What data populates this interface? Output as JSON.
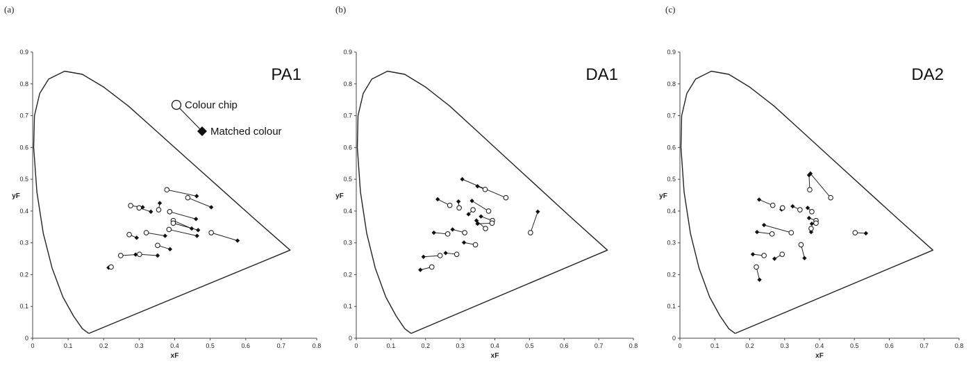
{
  "chart_data": [
    {
      "type": "scatter",
      "panel_label": "(a)",
      "title": "PA1",
      "xlabel": "xF",
      "ylabel": "yF",
      "xlim": [
        0,
        0.8
      ],
      "ylim": [
        0,
        0.9
      ],
      "xticks": [
        "0",
        "0.1",
        "0.2",
        "0.3",
        "0.4",
        "0.5",
        "0.6",
        "0.7",
        "0.8"
      ],
      "yticks": [
        "0",
        "0.1",
        "0.2",
        "0.3",
        "0.4",
        "0.5",
        "0.6",
        "0.7",
        "0.8",
        "0.9"
      ],
      "legend": {
        "chip_label": "Colour chip",
        "matched_label": "Matched colour",
        "placement": "top-right"
      },
      "gamut_boundary": [
        [
          0.158,
          0.015
        ],
        [
          0.14,
          0.03
        ],
        [
          0.115,
          0.07
        ],
        [
          0.085,
          0.13
        ],
        [
          0.055,
          0.22
        ],
        [
          0.03,
          0.33
        ],
        [
          0.012,
          0.46
        ],
        [
          0.003,
          0.6
        ],
        [
          0.005,
          0.7
        ],
        [
          0.02,
          0.77
        ],
        [
          0.045,
          0.815
        ],
        [
          0.09,
          0.84
        ],
        [
          0.14,
          0.83
        ],
        [
          0.2,
          0.79
        ],
        [
          0.27,
          0.73
        ],
        [
          0.35,
          0.65
        ],
        [
          0.43,
          0.57
        ],
        [
          0.52,
          0.48
        ],
        [
          0.62,
          0.38
        ],
        [
          0.725,
          0.277
        ],
        [
          0.158,
          0.015
        ]
      ],
      "pairs": [
        {
          "chip": [
            0.378,
            0.467
          ],
          "matched": [
            0.462,
            0.447
          ]
        },
        {
          "chip": [
            0.437,
            0.442
          ],
          "matched": [
            0.503,
            0.412
          ]
        },
        {
          "chip": [
            0.276,
            0.417
          ],
          "matched": [
            0.31,
            0.412
          ]
        },
        {
          "chip": [
            0.3,
            0.41
          ],
          "matched": [
            0.333,
            0.398
          ]
        },
        {
          "chip": [
            0.355,
            0.404
          ],
          "matched": [
            0.358,
            0.425
          ]
        },
        {
          "chip": [
            0.386,
            0.398
          ],
          "matched": [
            0.46,
            0.375
          ]
        },
        {
          "chip": [
            0.396,
            0.37
          ],
          "matched": [
            0.448,
            0.345
          ]
        },
        {
          "chip": [
            0.396,
            0.362
          ],
          "matched": [
            0.466,
            0.34
          ]
        },
        {
          "chip": [
            0.503,
            0.332
          ],
          "matched": [
            0.577,
            0.307
          ]
        },
        {
          "chip": [
            0.384,
            0.342
          ],
          "matched": [
            0.463,
            0.322
          ]
        },
        {
          "chip": [
            0.32,
            0.332
          ],
          "matched": [
            0.373,
            0.322
          ]
        },
        {
          "chip": [
            0.272,
            0.326
          ],
          "matched": [
            0.293,
            0.316
          ]
        },
        {
          "chip": [
            0.352,
            0.292
          ],
          "matched": [
            0.387,
            0.28
          ]
        },
        {
          "chip": [
            0.301,
            0.264
          ],
          "matched": [
            0.352,
            0.26
          ]
        },
        {
          "chip": [
            0.248,
            0.26
          ],
          "matched": [
            0.29,
            0.263
          ]
        },
        {
          "chip": [
            0.221,
            0.224
          ],
          "matched": [
            0.214,
            0.222
          ]
        }
      ]
    },
    {
      "type": "scatter",
      "panel_label": "(b)",
      "title": "DA1",
      "xlabel": "xF",
      "ylabel": "yF",
      "xlim": [
        0,
        0.8
      ],
      "ylim": [
        0,
        0.9
      ],
      "xticks": [
        "0",
        "0.1",
        "0.2",
        "0.3",
        "0.4",
        "0.5",
        "0.6",
        "0.7",
        "0.8"
      ],
      "yticks": [
        "0",
        "0.1",
        "0.2",
        "0.3",
        "0.4",
        "0.5",
        "0.6",
        "0.7",
        "0.8",
        "0.9"
      ],
      "gamut_boundary": [
        [
          0.158,
          0.015
        ],
        [
          0.14,
          0.03
        ],
        [
          0.115,
          0.07
        ],
        [
          0.085,
          0.13
        ],
        [
          0.055,
          0.22
        ],
        [
          0.03,
          0.33
        ],
        [
          0.012,
          0.46
        ],
        [
          0.003,
          0.6
        ],
        [
          0.005,
          0.7
        ],
        [
          0.02,
          0.77
        ],
        [
          0.045,
          0.815
        ],
        [
          0.09,
          0.84
        ],
        [
          0.14,
          0.83
        ],
        [
          0.2,
          0.79
        ],
        [
          0.27,
          0.73
        ],
        [
          0.35,
          0.65
        ],
        [
          0.43,
          0.57
        ],
        [
          0.52,
          0.48
        ],
        [
          0.62,
          0.38
        ],
        [
          0.725,
          0.277
        ],
        [
          0.158,
          0.015
        ]
      ],
      "pairs": [
        {
          "chip": [
            0.432,
            0.442
          ],
          "matched": [
            0.306,
            0.5
          ]
        },
        {
          "chip": [
            0.372,
            0.468
          ],
          "matched": [
            0.35,
            0.478
          ]
        },
        {
          "chip": [
            0.382,
            0.4
          ],
          "matched": [
            0.334,
            0.432
          ]
        },
        {
          "chip": [
            0.27,
            0.418
          ],
          "matched": [
            0.235,
            0.437
          ]
        },
        {
          "chip": [
            0.297,
            0.41
          ],
          "matched": [
            0.295,
            0.43
          ]
        },
        {
          "chip": [
            0.337,
            0.404
          ],
          "matched": [
            0.324,
            0.39
          ]
        },
        {
          "chip": [
            0.393,
            0.37
          ],
          "matched": [
            0.36,
            0.383
          ]
        },
        {
          "chip": [
            0.392,
            0.362
          ],
          "matched": [
            0.35,
            0.36
          ]
        },
        {
          "chip": [
            0.373,
            0.345
          ],
          "matched": [
            0.347,
            0.37
          ]
        },
        {
          "chip": [
            0.313,
            0.332
          ],
          "matched": [
            0.278,
            0.342
          ]
        },
        {
          "chip": [
            0.264,
            0.328
          ],
          "matched": [
            0.224,
            0.332
          ]
        },
        {
          "chip": [
            0.344,
            0.294
          ],
          "matched": [
            0.311,
            0.301
          ]
        },
        {
          "chip": [
            0.503,
            0.332
          ],
          "matched": [
            0.524,
            0.398
          ]
        },
        {
          "chip": [
            0.29,
            0.264
          ],
          "matched": [
            0.258,
            0.268
          ]
        },
        {
          "chip": [
            0.242,
            0.26
          ],
          "matched": [
            0.194,
            0.256
          ]
        },
        {
          "chip": [
            0.218,
            0.224
          ],
          "matched": [
            0.185,
            0.215
          ]
        }
      ]
    },
    {
      "type": "scatter",
      "panel_label": "(c)",
      "title": "DA2",
      "xlabel": "xF",
      "ylabel": "yF",
      "xlim": [
        0,
        0.8
      ],
      "ylim": [
        0,
        0.9
      ],
      "xticks": [
        "0",
        "0.1",
        "0.2",
        "0.3",
        "0.4",
        "0.5",
        "0.6",
        "0.7",
        "0.8"
      ],
      "yticks": [
        "0",
        "0.1",
        "0.2",
        "0.3",
        "0.4",
        "0.5",
        "0.6",
        "0.7",
        "0.8",
        "0.9"
      ],
      "gamut_boundary": [
        [
          0.158,
          0.015
        ],
        [
          0.14,
          0.03
        ],
        [
          0.115,
          0.07
        ],
        [
          0.085,
          0.13
        ],
        [
          0.055,
          0.22
        ],
        [
          0.03,
          0.33
        ],
        [
          0.012,
          0.46
        ],
        [
          0.003,
          0.6
        ],
        [
          0.005,
          0.7
        ],
        [
          0.02,
          0.77
        ],
        [
          0.045,
          0.815
        ],
        [
          0.09,
          0.84
        ],
        [
          0.14,
          0.83
        ],
        [
          0.2,
          0.79
        ],
        [
          0.27,
          0.73
        ],
        [
          0.35,
          0.65
        ],
        [
          0.43,
          0.57
        ],
        [
          0.52,
          0.48
        ],
        [
          0.62,
          0.38
        ],
        [
          0.725,
          0.277
        ],
        [
          0.158,
          0.015
        ]
      ],
      "pairs": [
        {
          "chip": [
            0.432,
            0.442
          ],
          "matched": [
            0.374,
            0.518
          ]
        },
        {
          "chip": [
            0.372,
            0.467
          ],
          "matched": [
            0.37,
            0.513
          ]
        },
        {
          "chip": [
            0.266,
            0.418
          ],
          "matched": [
            0.227,
            0.436
          ]
        },
        {
          "chip": [
            0.294,
            0.41
          ],
          "matched": [
            0.291,
            0.405
          ]
        },
        {
          "chip": [
            0.344,
            0.404
          ],
          "matched": [
            0.323,
            0.415
          ]
        },
        {
          "chip": [
            0.378,
            0.398
          ],
          "matched": [
            0.366,
            0.41
          ]
        },
        {
          "chip": [
            0.39,
            0.37
          ],
          "matched": [
            0.37,
            0.378
          ]
        },
        {
          "chip": [
            0.39,
            0.362
          ],
          "matched": [
            0.378,
            0.36
          ]
        },
        {
          "chip": [
            0.376,
            0.345
          ],
          "matched": [
            0.376,
            0.334
          ]
        },
        {
          "chip": [
            0.319,
            0.332
          ],
          "matched": [
            0.241,
            0.356
          ]
        },
        {
          "chip": [
            0.264,
            0.328
          ],
          "matched": [
            0.221,
            0.334
          ]
        },
        {
          "chip": [
            0.502,
            0.332
          ],
          "matched": [
            0.533,
            0.33
          ]
        },
        {
          "chip": [
            0.347,
            0.294
          ],
          "matched": [
            0.357,
            0.252
          ]
        },
        {
          "chip": [
            0.293,
            0.264
          ],
          "matched": [
            0.271,
            0.25
          ]
        },
        {
          "chip": [
            0.241,
            0.26
          ],
          "matched": [
            0.209,
            0.264
          ]
        },
        {
          "chip": [
            0.219,
            0.224
          ],
          "matched": [
            0.228,
            0.184
          ]
        }
      ]
    }
  ]
}
